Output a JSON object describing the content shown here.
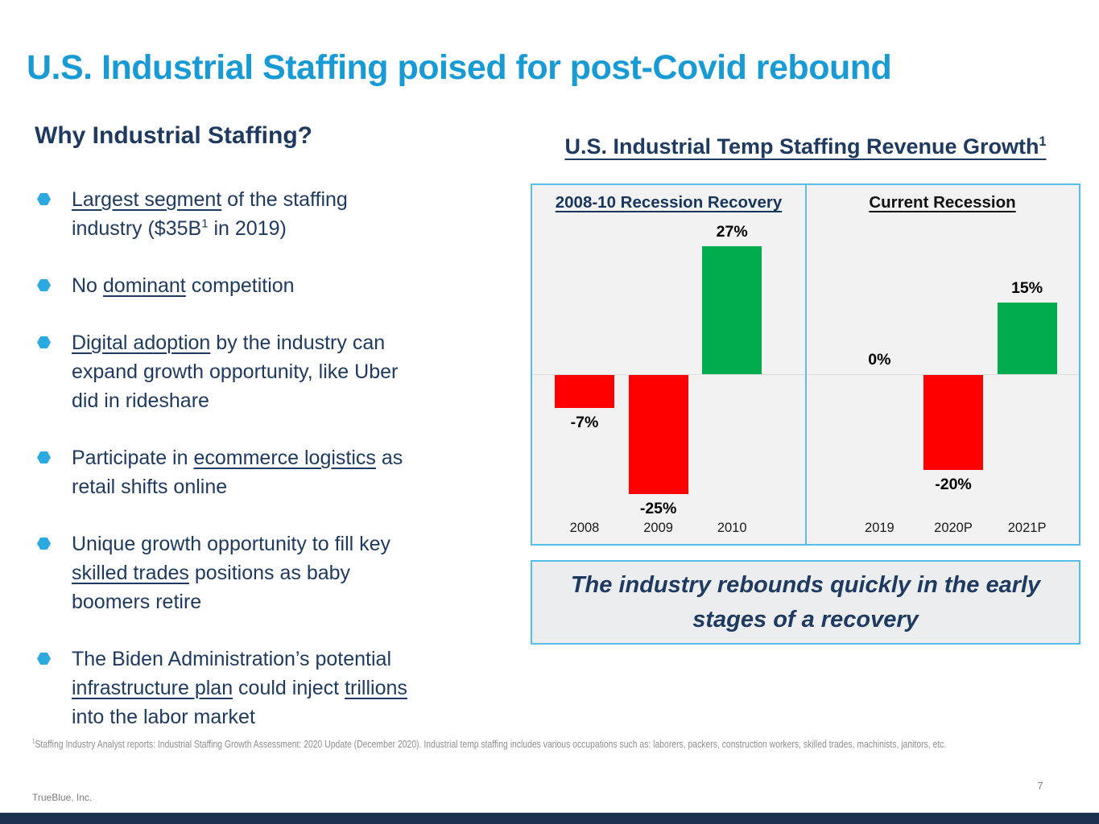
{
  "slide": {
    "title": "U.S. Industrial Staffing poised for post-Covid rebound",
    "footer_company": "TrueBlue, Inc.",
    "page_number": "7",
    "footnote_segments": [
      {
        "t": "1",
        "sup": 1
      },
      {
        "t": "Staffing Industry Analyst reports: Industrial Staffing Growth Assessment: 2020 Update (December 2020). Industrial temp staffing includes various occupations such as: laborers, packers, construction workers, skilled trades, machinists, janitors, etc."
      }
    ]
  },
  "left": {
    "heading": "Why Industrial Staffing?",
    "bullets": [
      {
        "segments": [
          {
            "t": "Largest segment",
            "u": 1
          },
          {
            "t": " of the staffing"
          },
          {
            "br": 1
          },
          {
            "t": "industry ($35B"
          },
          {
            "t": "1",
            "sup": 1
          },
          {
            "t": " in 2019)"
          }
        ]
      },
      {
        "segments": [
          {
            "t": "No "
          },
          {
            "t": "dominant",
            "u": 1
          },
          {
            "t": " competition"
          }
        ]
      },
      {
        "segments": [
          {
            "t": "Digital adoption",
            "u": 1
          },
          {
            "t": " by the industry can"
          },
          {
            "br": 1
          },
          {
            "t": "expand growth opportunity, like Uber"
          },
          {
            "br": 1
          },
          {
            "t": "did in rideshare"
          }
        ]
      },
      {
        "segments": [
          {
            "t": "Participate in "
          },
          {
            "t": "ecommerce logistics",
            "u": 1
          },
          {
            "t": " as"
          },
          {
            "br": 1
          },
          {
            "t": "retail shifts online"
          }
        ]
      },
      {
        "segments": [
          {
            "t": "Unique growth opportunity to fill key"
          },
          {
            "br": 1
          },
          {
            "t": "skilled trades",
            "u": 1
          },
          {
            "t": " positions as baby"
          },
          {
            "br": 1
          },
          {
            "t": "boomers retire"
          }
        ]
      },
      {
        "segments": [
          {
            "t": "The Biden Administration’s potential"
          },
          {
            "br": 1
          },
          {
            "t": "infrastructure plan",
            "u": 1
          },
          {
            "t": " could inject "
          },
          {
            "t": "trillions",
            "u": 1
          },
          {
            "br": 1
          },
          {
            "t": "into the labor market"
          }
        ]
      }
    ]
  },
  "right": {
    "chart_title": "U.S. Industrial Temp Staffing Revenue Growth",
    "chart_title_superscript": "1",
    "callout_segments": [
      {
        "t": "The industry rebounds quickly in the early"
      },
      {
        "br": 1
      },
      {
        "t": "stages of a recovery"
      }
    ]
  },
  "chart_data": {
    "type": "bar",
    "title": "U.S. Industrial Temp Staffing Revenue Growth (footnote 1)",
    "value_suffix": "%",
    "ylim": [
      -27,
      29
    ],
    "grid": false,
    "legend": false,
    "data_labels": true,
    "panels": [
      {
        "header": "2008-10 Recession Recovery",
        "header_color": "#17365D",
        "categories": [
          "2008",
          "2009",
          "2010"
        ],
        "values": [
          -7,
          -25,
          27
        ]
      },
      {
        "header": "Current Recession",
        "header_color": "#111111",
        "categories": [
          "2019",
          "2020P",
          "2021P"
        ],
        "values": [
          0,
          -20,
          15
        ]
      }
    ],
    "colors": {
      "positive": "#00AD4E",
      "negative": "#FE0000"
    }
  }
}
